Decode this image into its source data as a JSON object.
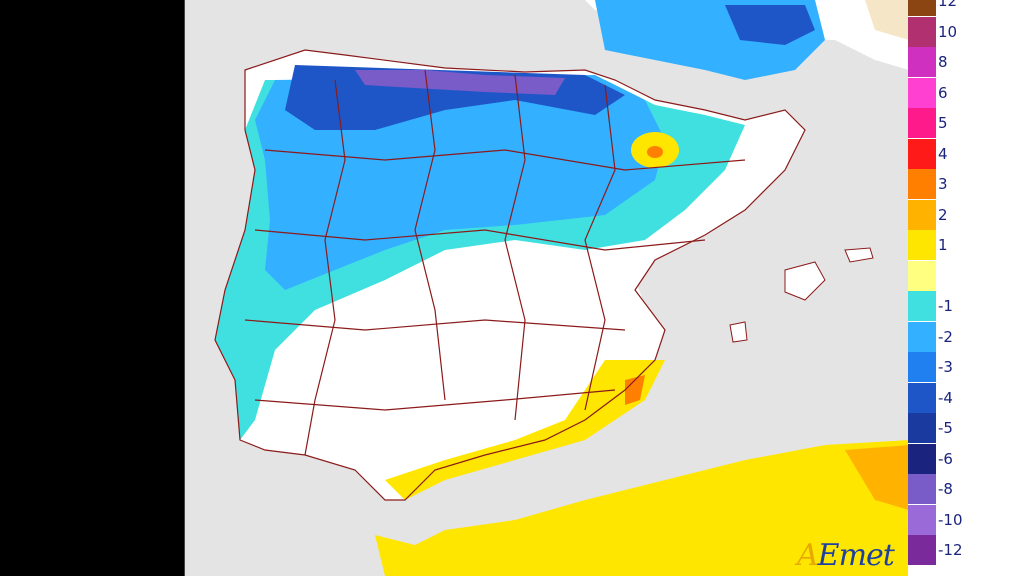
{
  "source_logo": "AEmet",
  "colors": {
    "background_sea": "#e4e4e4",
    "land_no_change": "#ffffff",
    "border_lines": "#8b1a1a"
  },
  "legend": {
    "items": [
      {
        "label": "12",
        "color": "#8b4513"
      },
      {
        "label": "10",
        "color": "#b03070"
      },
      {
        "label": "8",
        "color": "#d030c0"
      },
      {
        "label": "6",
        "color": "#ff40d0"
      },
      {
        "label": "5",
        "color": "#ff1a8c"
      },
      {
        "label": "4",
        "color": "#ff1a1a"
      },
      {
        "label": "3",
        "color": "#ff7f00"
      },
      {
        "label": "2",
        "color": "#ffb300"
      },
      {
        "label": "1",
        "color": "#ffe600"
      },
      {
        "label": "",
        "color": "#ffff80"
      },
      {
        "label": "-1",
        "color": "#40e0e0"
      },
      {
        "label": "-2",
        "color": "#33b0ff"
      },
      {
        "label": "-3",
        "color": "#2080f0"
      },
      {
        "label": "-4",
        "color": "#1e56c8"
      },
      {
        "label": "-5",
        "color": "#1a3aa0"
      },
      {
        "label": "-6",
        "color": "#1a237e"
      },
      {
        "label": "-8",
        "color": "#7a5cc8"
      },
      {
        "label": "-10",
        "color": "#9a6ad8"
      },
      {
        "label": "-12",
        "color": "#7a2a9a"
      }
    ]
  }
}
